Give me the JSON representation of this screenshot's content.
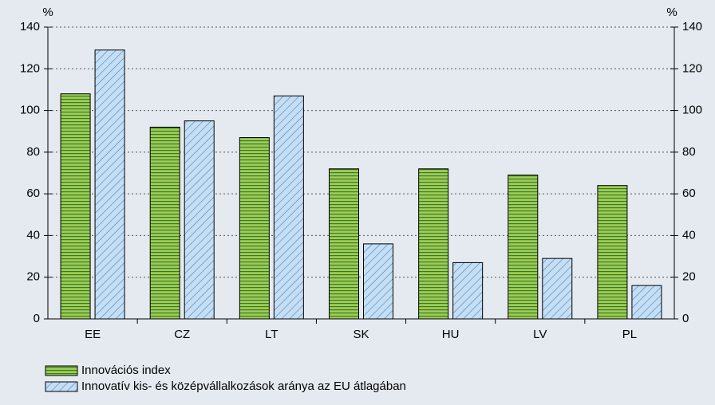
{
  "chart_data": {
    "type": "bar",
    "y_label": "%",
    "y2_label": "%",
    "categories": [
      "EE",
      "CZ",
      "LT",
      "SK",
      "HU",
      "LV",
      "PL"
    ],
    "series": [
      {
        "name": "Innovációs index",
        "color": "#9ccc5a",
        "pattern": "horizontal",
        "values": [
          108,
          92,
          87,
          72,
          72,
          69,
          64
        ]
      },
      {
        "name": "Innovatív kis- és középvállalkozások aránya az EU átlagában",
        "color": "#c4def4",
        "pattern": "diagonal",
        "values": [
          129,
          95,
          107,
          36,
          27,
          29,
          16
        ]
      }
    ],
    "ylim": [
      0,
      140
    ],
    "yticks": [
      0,
      20,
      40,
      60,
      80,
      100,
      120,
      140
    ],
    "y2lim": [
      0,
      140
    ],
    "y2ticks": [
      0,
      20,
      40,
      60,
      80,
      100,
      120,
      140
    ],
    "grid": true
  }
}
